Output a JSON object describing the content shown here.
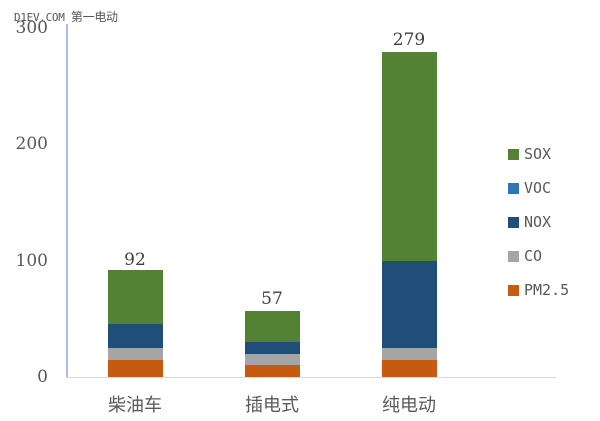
{
  "watermark": {
    "prefix": "D1EV.COM",
    "suffix": "第一电动"
  },
  "chart_data": {
    "type": "bar",
    "stacked": true,
    "title": "",
    "xlabel": "",
    "ylabel": "",
    "ylim": [
      0,
      300
    ],
    "yticks": [
      0,
      100,
      200,
      300
    ],
    "categories": [
      "柴油车",
      "插电式",
      "纯电动"
    ],
    "totals": [
      92,
      57,
      279
    ],
    "series": [
      {
        "name": "PM2.5",
        "color": "#c55a11",
        "values": [
          15,
          10,
          15
        ]
      },
      {
        "name": "CO",
        "color": "#a5a5a5",
        "values": [
          10,
          10,
          10
        ]
      },
      {
        "name": "NOX",
        "color": "#1f4e79",
        "values": [
          21,
          10,
          75
        ]
      },
      {
        "name": "VOC",
        "color": "#2e75b6",
        "values": [
          0,
          0,
          0
        ]
      },
      {
        "name": "SOX",
        "color": "#548235",
        "values": [
          46,
          27,
          179
        ]
      }
    ],
    "legend": {
      "position": "right",
      "order": [
        "SOX",
        "VOC",
        "NOX",
        "CO",
        "PM2.5"
      ]
    },
    "grid": false
  },
  "axis": {
    "y_labels": [
      "300",
      "200",
      "100",
      "0"
    ]
  },
  "x_labels": [
    "柴油车",
    "插电式",
    "纯电动"
  ],
  "bar_labels": [
    "92",
    "57",
    "279"
  ],
  "legend": [
    {
      "label": "SOX",
      "color": "#548235"
    },
    {
      "label": "VOC",
      "color": "#2e75b6"
    },
    {
      "label": "NOX",
      "color": "#1f4e79"
    },
    {
      "label": "CO",
      "color": "#a5a5a5"
    },
    {
      "label": "PM2.5",
      "color": "#c55a11"
    }
  ]
}
